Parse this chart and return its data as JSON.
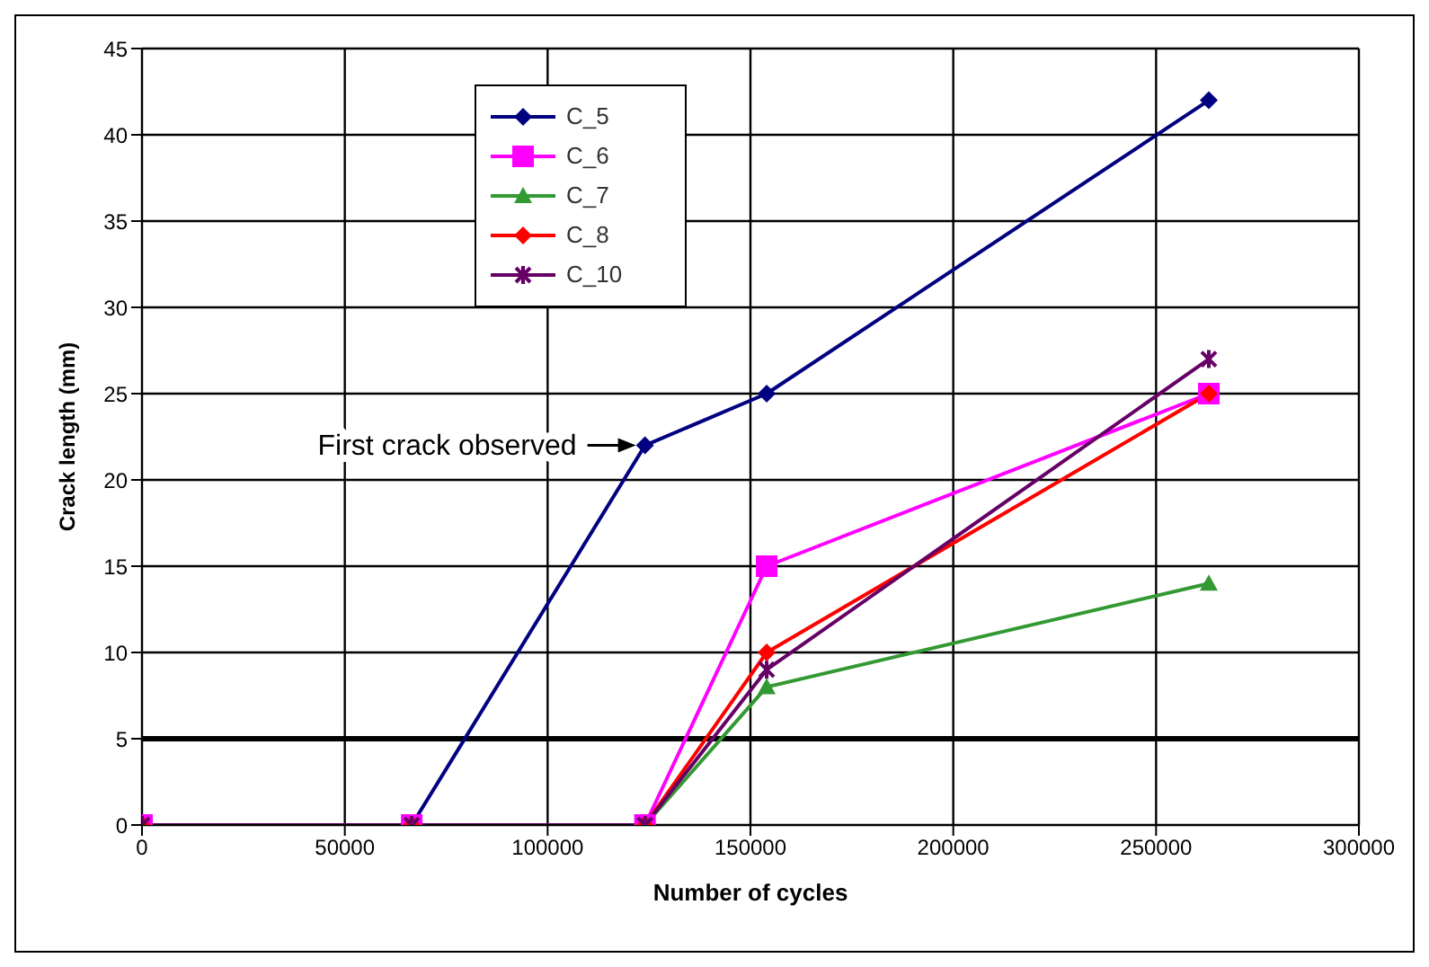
{
  "chart_data": {
    "type": "line",
    "xlabel": "Number of cycles",
    "ylabel": "Crack length (mm)",
    "x": [
      0,
      66500,
      124000,
      154000,
      263000
    ],
    "series": [
      {
        "name": "C_5",
        "color": "#000080",
        "marker": "diamond",
        "values": [
          0,
          0,
          22,
          25,
          42
        ]
      },
      {
        "name": "C_6",
        "color": "#ff00ff",
        "marker": "square",
        "values": [
          0,
          0,
          0,
          15,
          25
        ]
      },
      {
        "name": "C_7",
        "color": "#339933",
        "marker": "triangle",
        "values": [
          0,
          0,
          0,
          8,
          14
        ]
      },
      {
        "name": "C_8",
        "color": "#ff0000",
        "marker": "diamond",
        "values": [
          0,
          0,
          0,
          10,
          25
        ]
      },
      {
        "name": "C_10",
        "color": "#660066",
        "marker": "cross",
        "values": [
          0,
          0,
          0,
          9,
          27
        ]
      }
    ],
    "xlim": [
      0,
      300000
    ],
    "xticks": [
      0,
      50000,
      100000,
      150000,
      200000,
      250000,
      300000
    ],
    "ylim": [
      0,
      45
    ],
    "yticks": [
      0,
      5,
      10,
      15,
      20,
      25,
      30,
      35,
      40,
      45
    ],
    "ref_lines": [
      {
        "axis": "y",
        "value": 5,
        "color": "#000000"
      }
    ],
    "annotations": [
      {
        "text": "First crack observed",
        "x": 124000,
        "y": 22
      }
    ],
    "grid": true,
    "legend": "top left",
    "line_style": "solid"
  }
}
